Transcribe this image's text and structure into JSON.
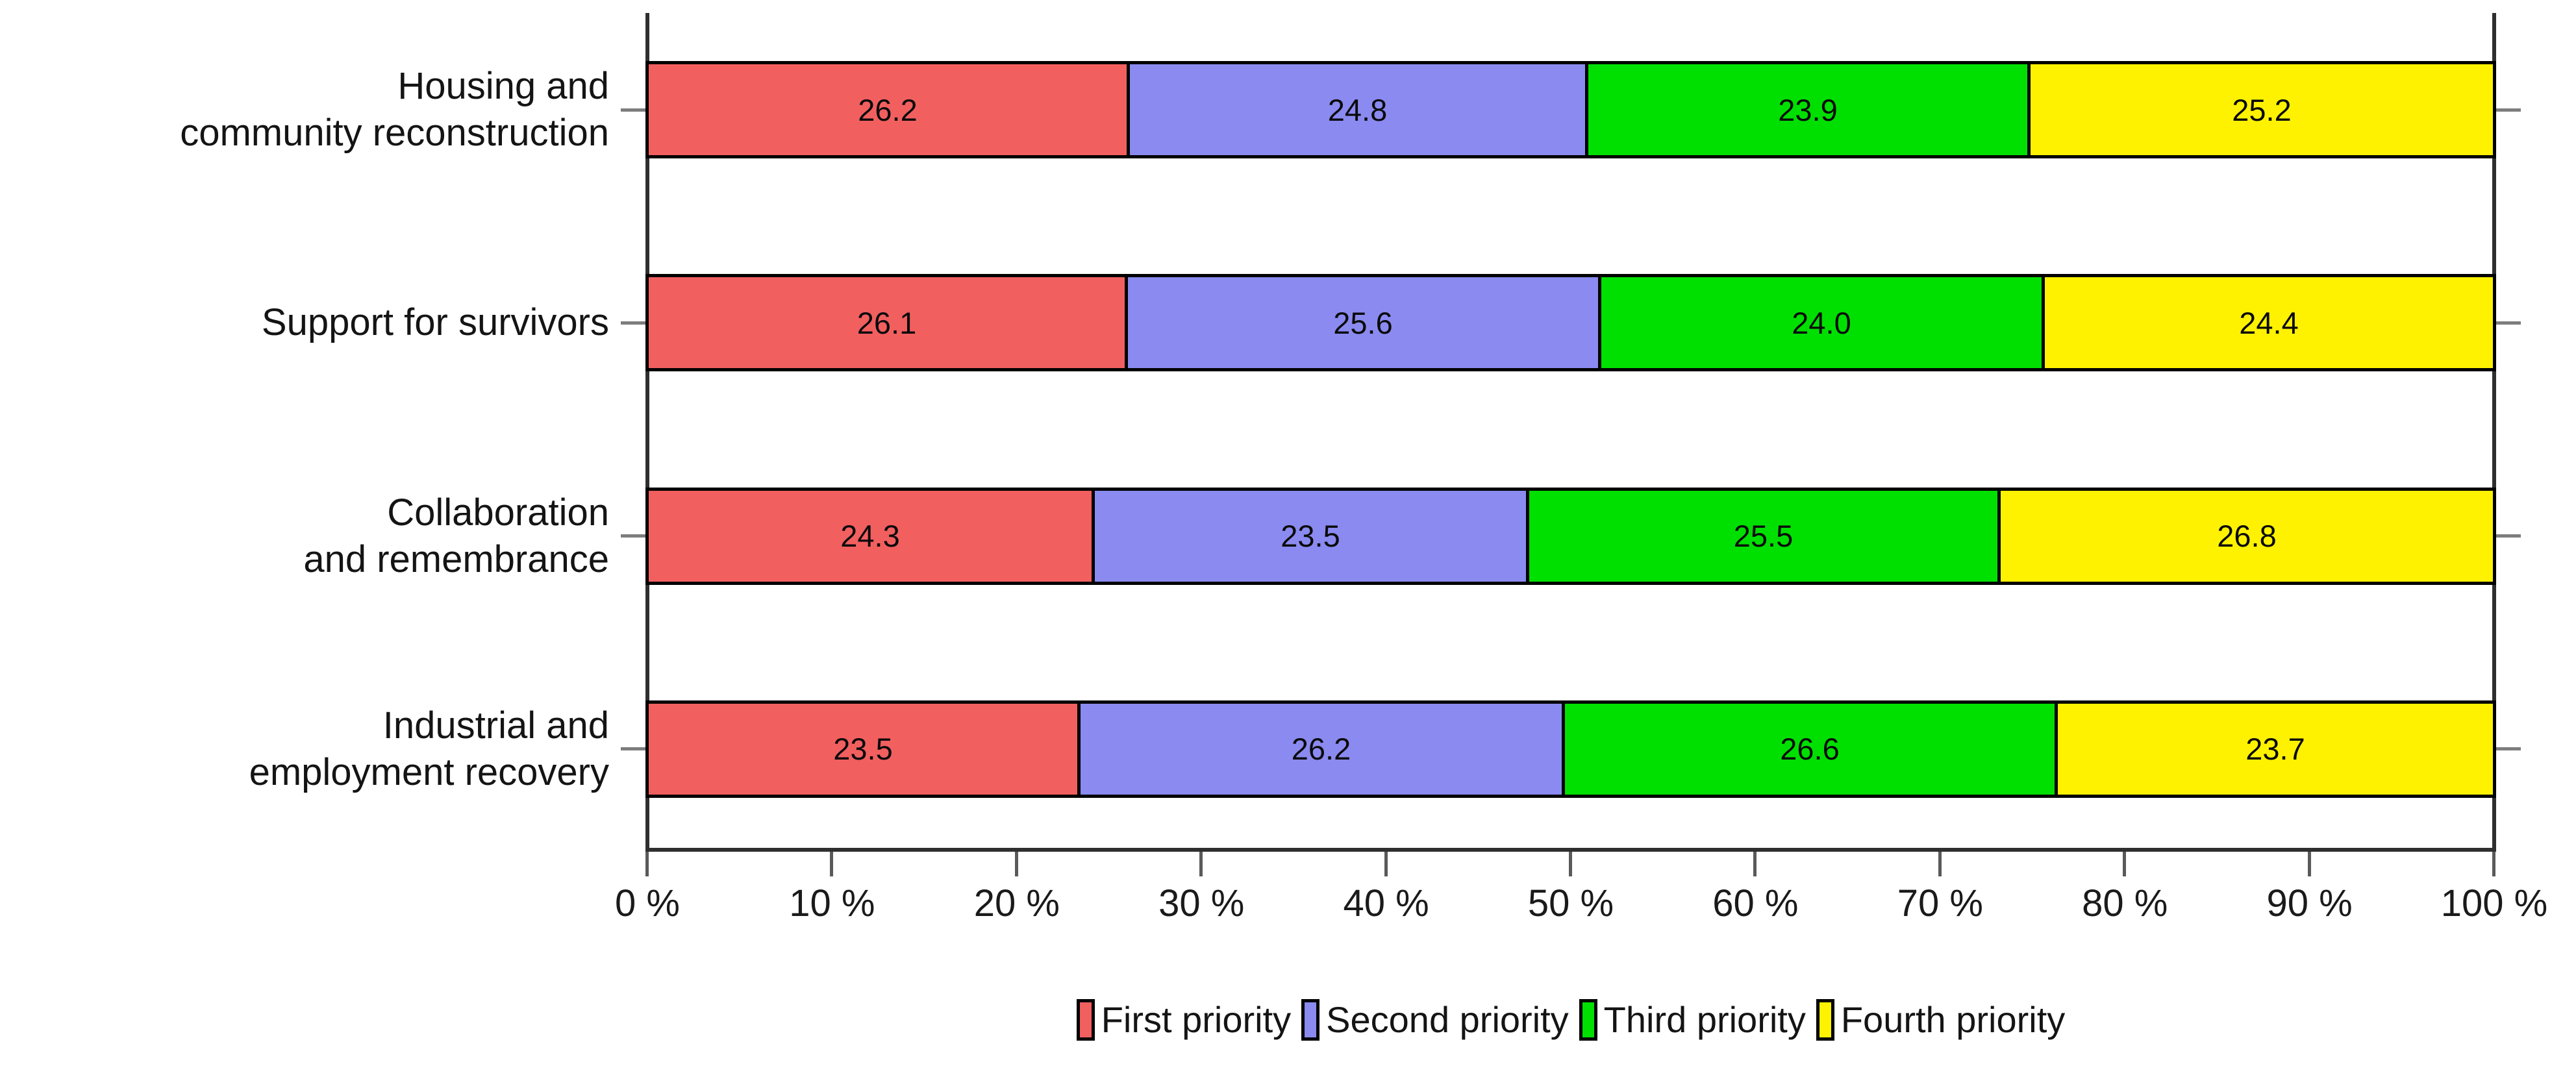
{
  "chart_data": {
    "type": "bar",
    "variant": "horizontal-stacked",
    "title": "",
    "xlabel": "",
    "ylabel": "",
    "xlim": [
      0,
      100
    ],
    "grid": false,
    "legend_position": "bottom",
    "categories": [
      "Housing and\ncommunity reconstruction",
      "Support for survivors",
      "Collaboration\nand remembrance",
      "Industrial and\nemployment recovery"
    ],
    "series": [
      {
        "name": "First priority",
        "color": "#f25f5f",
        "values": [
          26.2,
          26.1,
          24.3,
          23.5
        ]
      },
      {
        "name": "Second priority",
        "color": "#8a8af0",
        "values": [
          24.8,
          25.6,
          23.5,
          26.2
        ]
      },
      {
        "name": "Third priority",
        "color": "#00e000",
        "values": [
          23.9,
          24.0,
          25.5,
          26.6
        ]
      },
      {
        "name": "Fourth priority",
        "color": "#fff200",
        "values": [
          25.2,
          24.4,
          26.8,
          23.7
        ]
      }
    ],
    "x_tick_labels": [
      "0 %",
      "10 %",
      "20 %",
      "30 %",
      "40 %",
      "50 %",
      "60 %",
      "70 %",
      "80 %",
      "90 %",
      "100 %"
    ],
    "bar_border_color": "#000000",
    "axis_color": "#2f2f2f",
    "side_tick_color": "#7d7d7d",
    "bottom_tick_color": "#5a5a5a",
    "value_label_color": "#0a0a0a"
  }
}
